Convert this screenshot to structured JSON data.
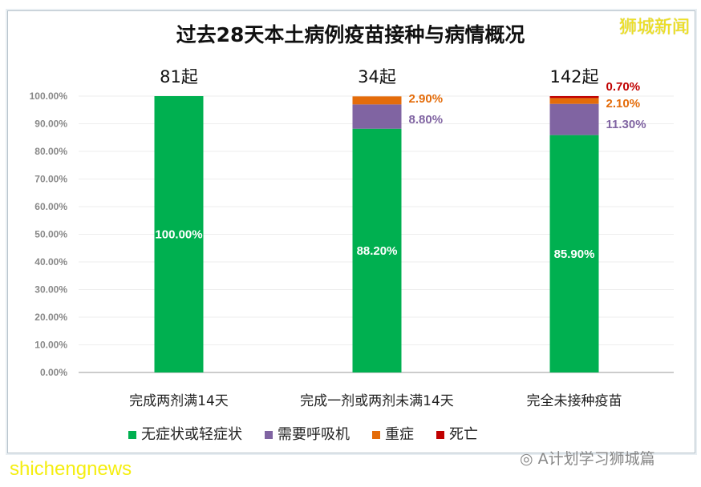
{
  "brand": "狮城新闻",
  "watermark": "shichengnews",
  "wechat_account": "A计划学习狮城篇",
  "chart_data": {
    "type": "bar",
    "stacked": true,
    "title": "过去28天本土病例疫苗接种与病情概况",
    "categories": [
      "完成两剂满14天",
      "完成一剂或两剂未满14天",
      "完全未接种疫苗"
    ],
    "totals": [
      "81起",
      "34起",
      "142起"
    ],
    "ylim": [
      0,
      100
    ],
    "yticks": [
      "0.00%",
      "10.00%",
      "20.00%",
      "30.00%",
      "40.00%",
      "50.00%",
      "60.00%",
      "70.00%",
      "80.00%",
      "90.00%",
      "100.00%"
    ],
    "grid": true,
    "legend_position": "bottom",
    "series": [
      {
        "name": "无症状或轻症状",
        "color": "#00b050",
        "values": [
          100.0,
          88.2,
          85.9
        ],
        "labels": [
          "100.00%",
          "88.20%",
          "85.90%"
        ]
      },
      {
        "name": "需要呼吸机",
        "color": "#8064a2",
        "values": [
          0,
          8.8,
          11.3
        ],
        "labels": [
          "",
          "8.80%",
          "11.30%"
        ]
      },
      {
        "name": "重症",
        "color": "#e46c0a",
        "values": [
          0,
          2.9,
          2.1
        ],
        "labels": [
          "",
          "2.90%",
          "2.10%"
        ]
      },
      {
        "name": "死亡",
        "color": "#c00000",
        "values": [
          0,
          0,
          0.7
        ],
        "labels": [
          "",
          "",
          "0.70%"
        ]
      }
    ]
  }
}
